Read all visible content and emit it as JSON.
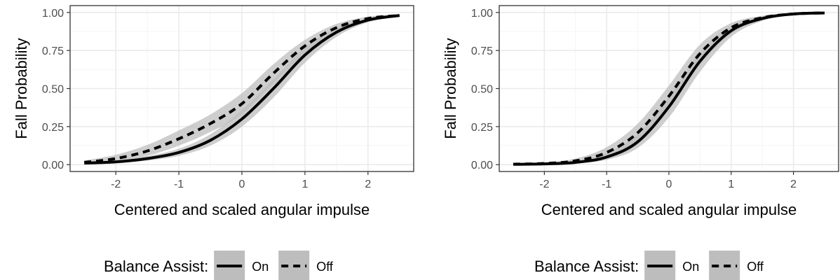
{
  "colors": {
    "panel_border": "#333333",
    "grid_major": "#ebebeb",
    "grid_minor": "#f5f5f5",
    "ribbon": "#bdbdbd",
    "line": "#000000",
    "legend_key_bg": "#bdbdbd"
  },
  "chart_data": [
    {
      "type": "line",
      "title": "",
      "xlabel": "Centered and scaled angular impulse",
      "ylabel": "Fall Probability",
      "xlim": [
        -2.5,
        2.5
      ],
      "ylim": [
        0,
        1
      ],
      "x_ticks": [
        -2,
        -1,
        0,
        1,
        2
      ],
      "x_tick_labels": [
        "-2",
        "-1",
        "0",
        "1",
        "2"
      ],
      "y_ticks": [
        0,
        0.25,
        0.5,
        0.75,
        1
      ],
      "y_tick_labels": [
        "0.00",
        "0.25",
        "0.50",
        "0.75",
        "1.00"
      ],
      "grid": true,
      "legend": {
        "position": "bottom",
        "title": "Balance Assist:"
      },
      "x": [
        -2.5,
        -2.0,
        -1.5,
        -1.0,
        -0.5,
        0.0,
        0.5,
        1.0,
        1.5,
        2.0,
        2.5
      ],
      "series": [
        {
          "name": "On",
          "linetype": "solid",
          "values": [
            0.01,
            0.018,
            0.04,
            0.08,
            0.16,
            0.3,
            0.5,
            0.72,
            0.87,
            0.95,
            0.98
          ],
          "lower": [
            0.005,
            0.011,
            0.027,
            0.058,
            0.125,
            0.25,
            0.44,
            0.67,
            0.84,
            0.935,
            0.972
          ],
          "upper": [
            0.017,
            0.028,
            0.056,
            0.105,
            0.2,
            0.36,
            0.56,
            0.77,
            0.9,
            0.962,
            0.986
          ]
        },
        {
          "name": "Off",
          "linetype": "dashed",
          "values": [
            0.015,
            0.04,
            0.09,
            0.17,
            0.27,
            0.4,
            0.6,
            0.78,
            0.9,
            0.96,
            0.98
          ],
          "lower": [
            0.006,
            0.022,
            0.058,
            0.125,
            0.215,
            0.33,
            0.535,
            0.73,
            0.872,
            0.945,
            0.972
          ],
          "upper": [
            0.028,
            0.065,
            0.13,
            0.225,
            0.33,
            0.47,
            0.66,
            0.82,
            0.925,
            0.972,
            0.987
          ]
        }
      ]
    },
    {
      "type": "line",
      "title": "",
      "xlabel": "Centered and scaled angular impulse",
      "ylabel": "Fall Probability",
      "xlim": [
        -2.5,
        2.5
      ],
      "ylim": [
        0,
        1
      ],
      "x_ticks": [
        -2,
        -1,
        0,
        1,
        2
      ],
      "x_tick_labels": [
        "-2",
        "-1",
        "0",
        "1",
        "2"
      ],
      "y_ticks": [
        0,
        0.25,
        0.5,
        0.75,
        1
      ],
      "y_tick_labels": [
        "0.00",
        "0.25",
        "0.50",
        "0.75",
        "1.00"
      ],
      "grid": true,
      "legend": {
        "position": "bottom",
        "title": "Balance Assist:"
      },
      "x": [
        -2.5,
        -2.0,
        -1.5,
        -1.0,
        -0.5,
        0.0,
        0.5,
        1.0,
        1.5,
        2.0,
        2.5
      ],
      "series": [
        {
          "name": "On",
          "linetype": "solid",
          "values": [
            0.002,
            0.005,
            0.015,
            0.05,
            0.15,
            0.38,
            0.68,
            0.88,
            0.96,
            0.99,
            0.997
          ],
          "lower": [
            0.0,
            0.002,
            0.008,
            0.032,
            0.11,
            0.31,
            0.61,
            0.84,
            0.945,
            0.984,
            0.994
          ],
          "upper": [
            0.005,
            0.01,
            0.025,
            0.075,
            0.2,
            0.45,
            0.74,
            0.91,
            0.972,
            0.994,
            0.999
          ]
        },
        {
          "name": "Off",
          "linetype": "dashed",
          "values": [
            0.003,
            0.008,
            0.025,
            0.08,
            0.21,
            0.45,
            0.73,
            0.9,
            0.965,
            0.99,
            0.997
          ],
          "lower": [
            0.0,
            0.004,
            0.014,
            0.052,
            0.16,
            0.38,
            0.66,
            0.86,
            0.95,
            0.985,
            0.994
          ],
          "upper": [
            0.007,
            0.015,
            0.04,
            0.115,
            0.27,
            0.52,
            0.79,
            0.93,
            0.978,
            0.995,
            0.999
          ]
        }
      ]
    }
  ]
}
